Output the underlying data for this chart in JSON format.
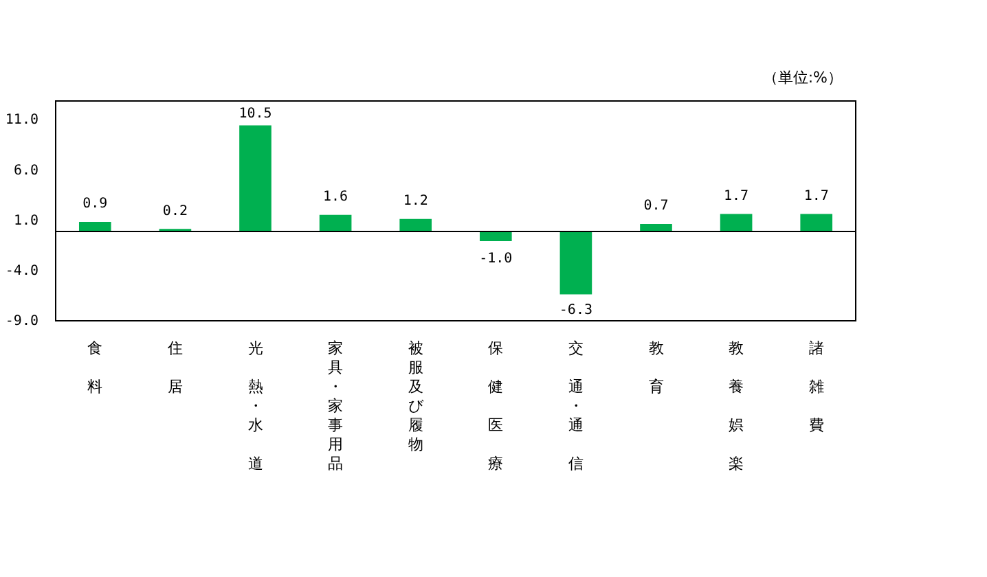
{
  "chart_data": {
    "type": "bar",
    "categories": [
      "食料",
      "住居",
      "光熱・水道",
      "家具・家事用品",
      "被服及び履物",
      "保健医療",
      "交通・通信",
      "教育",
      "教養娯楽",
      "諸雑費"
    ],
    "values": [
      0.9,
      0.2,
      10.5,
      1.6,
      1.2,
      -1.0,
      -6.3,
      0.7,
      1.7,
      1.7
    ],
    "value_labels": [
      "0.9",
      "0.2",
      "10.5",
      "1.6",
      "1.2",
      "-1.0",
      "-6.3",
      "0.7",
      "1.7",
      "1.7"
    ],
    "color": "#00b050",
    "ylim": [
      -9,
      13
    ],
    "yticks": [
      {
        "value": -9,
        "label": "-9.0"
      },
      {
        "value": -4,
        "label": "-4.0"
      },
      {
        "value": 1,
        "label": "1.0"
      },
      {
        "value": 6,
        "label": "6.0"
      },
      {
        "value": 11,
        "label": "11.0"
      }
    ],
    "annotations": [
      "（単位:%）"
    ]
  }
}
